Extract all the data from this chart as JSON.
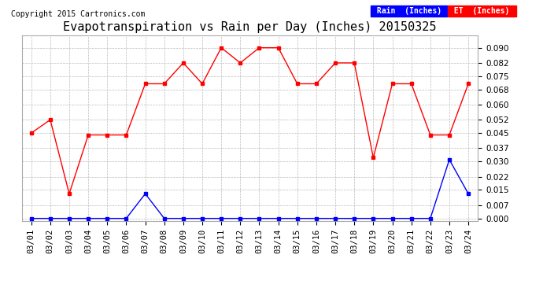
{
  "title": "Evapotranspiration vs Rain per Day (Inches) 20150325",
  "copyright": "Copyright 2015 Cartronics.com",
  "dates": [
    "03/01",
    "03/02",
    "03/03",
    "03/04",
    "03/05",
    "03/06",
    "03/07",
    "03/08",
    "03/09",
    "03/10",
    "03/11",
    "03/12",
    "03/13",
    "03/14",
    "03/15",
    "03/16",
    "03/17",
    "03/18",
    "03/19",
    "03/20",
    "03/21",
    "03/22",
    "03/23",
    "03/24"
  ],
  "et_values": [
    0.045,
    0.052,
    0.013,
    0.044,
    0.044,
    0.044,
    0.071,
    0.071,
    0.082,
    0.071,
    0.09,
    0.082,
    0.09,
    0.09,
    0.071,
    0.071,
    0.082,
    0.082,
    0.032,
    0.071,
    0.071,
    0.044,
    0.044,
    0.071
  ],
  "rain_values": [
    0.0,
    0.0,
    0.0,
    0.0,
    0.0,
    0.0,
    0.013,
    0.0,
    0.0,
    0.0,
    0.0,
    0.0,
    0.0,
    0.0,
    0.0,
    0.0,
    0.0,
    0.0,
    0.0,
    0.0,
    0.0,
    0.0,
    0.031,
    0.013
  ],
  "et_color": "#ff0000",
  "rain_color": "#0000ff",
  "bg_color": "#ffffff",
  "grid_color": "#bbbbbb",
  "ylim_min": -0.0015,
  "ylim_max": 0.0965,
  "yticks": [
    0.0,
    0.007,
    0.015,
    0.022,
    0.03,
    0.037,
    0.045,
    0.052,
    0.06,
    0.068,
    0.075,
    0.082,
    0.09
  ],
  "legend_rain_bg": "#0000ff",
  "legend_et_bg": "#ff0000",
  "legend_rain_text": "Rain  (Inches)",
  "legend_et_text": "ET  (Inches)",
  "title_fontsize": 11,
  "copyright_fontsize": 7,
  "tick_fontsize": 7.5,
  "marker_size": 3
}
